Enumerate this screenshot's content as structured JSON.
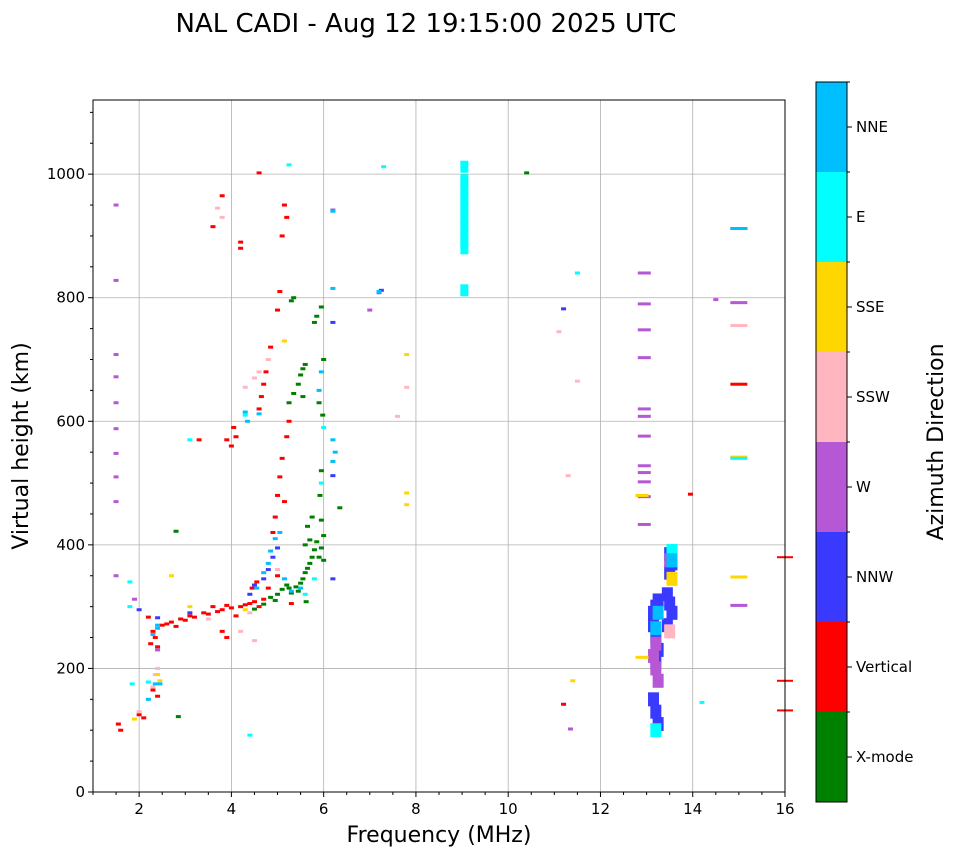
{
  "chart_data": {
    "type": "scatter",
    "title": "NAL CADI - Aug 12 19:15:00 2025 UTC",
    "xlabel": "Frequency (MHz)",
    "ylabel": "Virtual height (km)",
    "xlim": [
      1,
      16
    ],
    "ylim": [
      0,
      1120
    ],
    "x_ticks": [
      2,
      4,
      6,
      8,
      10,
      12,
      14,
      16
    ],
    "x_tick_labels": [
      "2",
      "4",
      "6",
      "8",
      "10",
      "12",
      "14",
      "16"
    ],
    "y_ticks": [
      0,
      200,
      400,
      600,
      800,
      1000
    ],
    "y_tick_labels": [
      "0",
      "200",
      "400",
      "600",
      "800",
      "1000"
    ],
    "grid": true,
    "colorbar": {
      "label": "Azimuth Direction",
      "categories": [
        "X-mode",
        "Vertical",
        "NNW",
        "W",
        "SSW",
        "SSE",
        "E",
        "NNE"
      ],
      "colors": [
        "#008000",
        "#ff0000",
        "#3a3aff",
        "#b657d6",
        "#ffb6c1",
        "#ffd700",
        "#00ffff",
        "#00bfff"
      ]
    },
    "series": [
      {
        "name": "X-mode",
        "points": [
          [
            5.25,
            330
          ],
          [
            5.4,
            332
          ],
          [
            5.5,
            338
          ],
          [
            5.55,
            345
          ],
          [
            5.6,
            355
          ],
          [
            5.65,
            362
          ],
          [
            5.7,
            370
          ],
          [
            5.75,
            380
          ],
          [
            5.8,
            392
          ],
          [
            5.85,
            405
          ],
          [
            5.9,
            380
          ],
          [
            5.95,
            395
          ],
          [
            6.0,
            375
          ],
          [
            6.0,
            415
          ],
          [
            5.0,
            320
          ],
          [
            5.1,
            328
          ],
          [
            4.85,
            315
          ],
          [
            5.3,
            322
          ],
          [
            5.2,
            335
          ],
          [
            5.45,
            325
          ],
          [
            5.55,
            640
          ],
          [
            5.45,
            660
          ],
          [
            5.5,
            675
          ],
          [
            5.55,
            685
          ],
          [
            5.6,
            692
          ],
          [
            5.35,
            645
          ],
          [
            5.25,
            630
          ],
          [
            5.8,
            760
          ],
          [
            5.85,
            770
          ],
          [
            5.95,
            785
          ],
          [
            5.9,
            630
          ],
          [
            5.95,
            520
          ],
          [
            5.92,
            480
          ],
          [
            5.95,
            440
          ],
          [
            6.0,
            700
          ],
          [
            5.98,
            610
          ],
          [
            6.35,
            460
          ],
          [
            5.75,
            445
          ],
          [
            5.65,
            430
          ],
          [
            5.7,
            408
          ],
          [
            5.6,
            400
          ],
          [
            5.3,
            795
          ],
          [
            5.35,
            800
          ],
          [
            5.62,
            308
          ],
          [
            2.8,
            422
          ],
          [
            2.85,
            122
          ],
          [
            10.4,
            1002
          ],
          [
            4.5,
            296
          ],
          [
            4.7,
            304
          ],
          [
            4.95,
            310
          ]
        ]
      },
      {
        "name": "Vertical",
        "points": [
          [
            1.55,
            110
          ],
          [
            1.6,
            100
          ],
          [
            2.0,
            125
          ],
          [
            2.1,
            120
          ],
          [
            2.3,
            260
          ],
          [
            2.35,
            250
          ],
          [
            2.5,
            270
          ],
          [
            2.6,
            272
          ],
          [
            2.7,
            275
          ],
          [
            2.8,
            268
          ],
          [
            2.9,
            280
          ],
          [
            3.0,
            278
          ],
          [
            3.1,
            285
          ],
          [
            3.2,
            283
          ],
          [
            3.4,
            290
          ],
          [
            3.5,
            288
          ],
          [
            3.6,
            300
          ],
          [
            3.7,
            292
          ],
          [
            3.8,
            295
          ],
          [
            3.9,
            302
          ],
          [
            4.0,
            298
          ],
          [
            4.1,
            285
          ],
          [
            4.2,
            300
          ],
          [
            4.3,
            303
          ],
          [
            4.4,
            305
          ],
          [
            4.5,
            308
          ],
          [
            4.6,
            300
          ],
          [
            4.7,
            312
          ],
          [
            4.55,
            340
          ],
          [
            4.45,
            330
          ],
          [
            4.6,
            620
          ],
          [
            4.65,
            640
          ],
          [
            4.7,
            660
          ],
          [
            4.75,
            680
          ],
          [
            4.85,
            720
          ],
          [
            5.0,
            780
          ],
          [
            5.05,
            810
          ],
          [
            5.1,
            900
          ],
          [
            5.15,
            950
          ],
          [
            5.2,
            930
          ],
          [
            5.25,
            600
          ],
          [
            5.2,
            575
          ],
          [
            5.1,
            540
          ],
          [
            5.05,
            510
          ],
          [
            5.0,
            480
          ],
          [
            4.95,
            445
          ],
          [
            4.9,
            420
          ],
          [
            5.15,
            470
          ],
          [
            4.2,
            880
          ],
          [
            4.2,
            890
          ],
          [
            3.6,
            915
          ],
          [
            3.8,
            965
          ],
          [
            4.6,
            1002
          ],
          [
            4.05,
            590
          ],
          [
            3.9,
            570
          ],
          [
            3.3,
            570
          ],
          [
            2.4,
            155
          ],
          [
            2.3,
            165
          ],
          [
            11.2,
            142
          ],
          [
            13.95,
            482
          ],
          [
            15.0,
            660
          ],
          [
            16.0,
            380
          ],
          [
            16.0,
            180
          ],
          [
            16.0,
            132
          ],
          [
            3.8,
            260
          ],
          [
            3.9,
            250
          ],
          [
            5.0,
            350
          ],
          [
            5.3,
            305
          ],
          [
            4.8,
            330
          ],
          [
            2.2,
            283
          ],
          [
            2.25,
            240
          ],
          [
            2.4,
            235
          ],
          [
            4.0,
            560
          ],
          [
            4.1,
            575
          ]
        ]
      },
      {
        "name": "NNW",
        "points": [
          [
            13.15,
            290
          ],
          [
            13.2,
            300
          ],
          [
            13.25,
            310
          ],
          [
            13.15,
            270
          ],
          [
            13.2,
            250
          ],
          [
            13.25,
            230
          ],
          [
            13.2,
            210
          ],
          [
            13.15,
            150
          ],
          [
            13.2,
            130
          ],
          [
            13.25,
            110
          ],
          [
            13.5,
            385
          ],
          [
            13.55,
            370
          ],
          [
            13.5,
            355
          ],
          [
            13.45,
            320
          ],
          [
            13.5,
            305
          ],
          [
            13.55,
            290
          ],
          [
            13.45,
            270
          ],
          [
            4.4,
            320
          ],
          [
            4.5,
            335
          ],
          [
            4.7,
            345
          ],
          [
            4.8,
            360
          ],
          [
            4.9,
            380
          ],
          [
            5.0,
            395
          ],
          [
            6.2,
            760
          ],
          [
            6.2,
            512
          ],
          [
            6.2,
            345
          ],
          [
            7.25,
            812
          ],
          [
            11.2,
            782
          ],
          [
            2.4,
            282
          ],
          [
            2.0,
            295
          ],
          [
            3.1,
            290
          ],
          [
            15.0,
            912
          ]
        ]
      },
      {
        "name": "W",
        "points": [
          [
            1.5,
            950
          ],
          [
            1.5,
            828
          ],
          [
            1.5,
            708
          ],
          [
            1.5,
            672
          ],
          [
            1.5,
            630
          ],
          [
            1.5,
            588
          ],
          [
            1.5,
            548
          ],
          [
            1.5,
            510
          ],
          [
            1.5,
            470
          ],
          [
            1.5,
            350
          ],
          [
            13.2,
            200
          ],
          [
            13.25,
            180
          ],
          [
            13.15,
            220
          ],
          [
            13.2,
            240
          ],
          [
            12.95,
            840
          ],
          [
            12.95,
            790
          ],
          [
            12.95,
            748
          ],
          [
            12.95,
            703
          ],
          [
            12.95,
            620
          ],
          [
            12.95,
            608
          ],
          [
            12.95,
            576
          ],
          [
            12.95,
            528
          ],
          [
            12.95,
            517
          ],
          [
            12.95,
            502
          ],
          [
            12.95,
            478
          ],
          [
            12.95,
            433
          ],
          [
            13.5,
            375
          ],
          [
            15.0,
            792
          ],
          [
            15.0,
            302
          ],
          [
            14.5,
            797
          ],
          [
            7.2,
            808
          ],
          [
            7.0,
            780
          ],
          [
            11.35,
            102
          ],
          [
            6.2,
            942
          ],
          [
            2.4,
            230
          ],
          [
            1.9,
            312
          ]
        ]
      },
      {
        "name": "SSW",
        "points": [
          [
            4.3,
            655
          ],
          [
            4.5,
            670
          ],
          [
            4.6,
            680
          ],
          [
            4.8,
            700
          ],
          [
            4.5,
            245
          ],
          [
            4.2,
            260
          ],
          [
            3.7,
            945
          ],
          [
            3.8,
            930
          ],
          [
            7.8,
            655
          ],
          [
            7.6,
            608
          ],
          [
            11.5,
            665
          ],
          [
            11.3,
            512
          ],
          [
            11.1,
            745
          ],
          [
            15.0,
            755
          ],
          [
            2.3,
            170
          ],
          [
            2.35,
            190
          ],
          [
            2.4,
            200
          ],
          [
            2.0,
            130
          ],
          [
            5.0,
            360
          ],
          [
            4.4,
            290
          ],
          [
            3.5,
            280
          ],
          [
            13.5,
            260
          ]
        ]
      },
      {
        "name": "SSE",
        "points": [
          [
            2.7,
            350
          ],
          [
            2.4,
            190
          ],
          [
            2.45,
            180
          ],
          [
            1.9,
            118
          ],
          [
            7.8,
            708
          ],
          [
            7.8,
            484
          ],
          [
            7.8,
            465
          ],
          [
            12.9,
            480
          ],
          [
            12.9,
            218
          ],
          [
            11.4,
            180
          ],
          [
            13.55,
            345
          ],
          [
            15.0,
            542
          ],
          [
            15.0,
            348
          ],
          [
            5.15,
            730
          ],
          [
            4.3,
            295
          ],
          [
            3.1,
            300
          ]
        ]
      },
      {
        "name": "E",
        "points": [
          [
            9.05,
            1012
          ],
          [
            9.05,
            990
          ],
          [
            9.05,
            975
          ],
          [
            9.05,
            960
          ],
          [
            9.05,
            945
          ],
          [
            9.05,
            930
          ],
          [
            9.05,
            915
          ],
          [
            9.05,
            900
          ],
          [
            9.05,
            890
          ],
          [
            9.05,
            880
          ],
          [
            9.05,
            812
          ],
          [
            7.3,
            1012
          ],
          [
            5.25,
            1015
          ],
          [
            11.5,
            840
          ],
          [
            14.2,
            145
          ],
          [
            15.0,
            540
          ],
          [
            13.55,
            390
          ],
          [
            13.2,
            100
          ],
          [
            4.4,
            92
          ],
          [
            1.8,
            340
          ],
          [
            1.8,
            300
          ],
          [
            1.85,
            175
          ],
          [
            2.2,
            178
          ],
          [
            3.1,
            570
          ],
          [
            4.3,
            610
          ],
          [
            5.95,
            500
          ],
          [
            6.0,
            590
          ],
          [
            5.6,
            320
          ],
          [
            5.8,
            345
          ]
        ]
      },
      {
        "name": "NNE",
        "points": [
          [
            6.2,
            570
          ],
          [
            6.25,
            550
          ],
          [
            6.2,
            535
          ],
          [
            5.95,
            680
          ],
          [
            5.9,
            650
          ],
          [
            6.2,
            815
          ],
          [
            6.2,
            940
          ],
          [
            7.2,
            810
          ],
          [
            2.2,
            150
          ],
          [
            2.3,
            255
          ],
          [
            2.4,
            270
          ],
          [
            2.35,
            175
          ],
          [
            2.4,
            265
          ],
          [
            4.55,
            330
          ],
          [
            4.7,
            355
          ],
          [
            4.8,
            370
          ],
          [
            4.85,
            390
          ],
          [
            4.95,
            410
          ],
          [
            5.05,
            420
          ],
          [
            5.15,
            345
          ],
          [
            5.3,
            325
          ],
          [
            5.5,
            330
          ],
          [
            4.3,
            615
          ],
          [
            4.35,
            600
          ],
          [
            4.6,
            612
          ],
          [
            13.25,
            290
          ],
          [
            13.55,
            375
          ],
          [
            13.2,
            265
          ],
          [
            15.0,
            912
          ],
          [
            2.45,
            175
          ]
        ]
      }
    ]
  }
}
